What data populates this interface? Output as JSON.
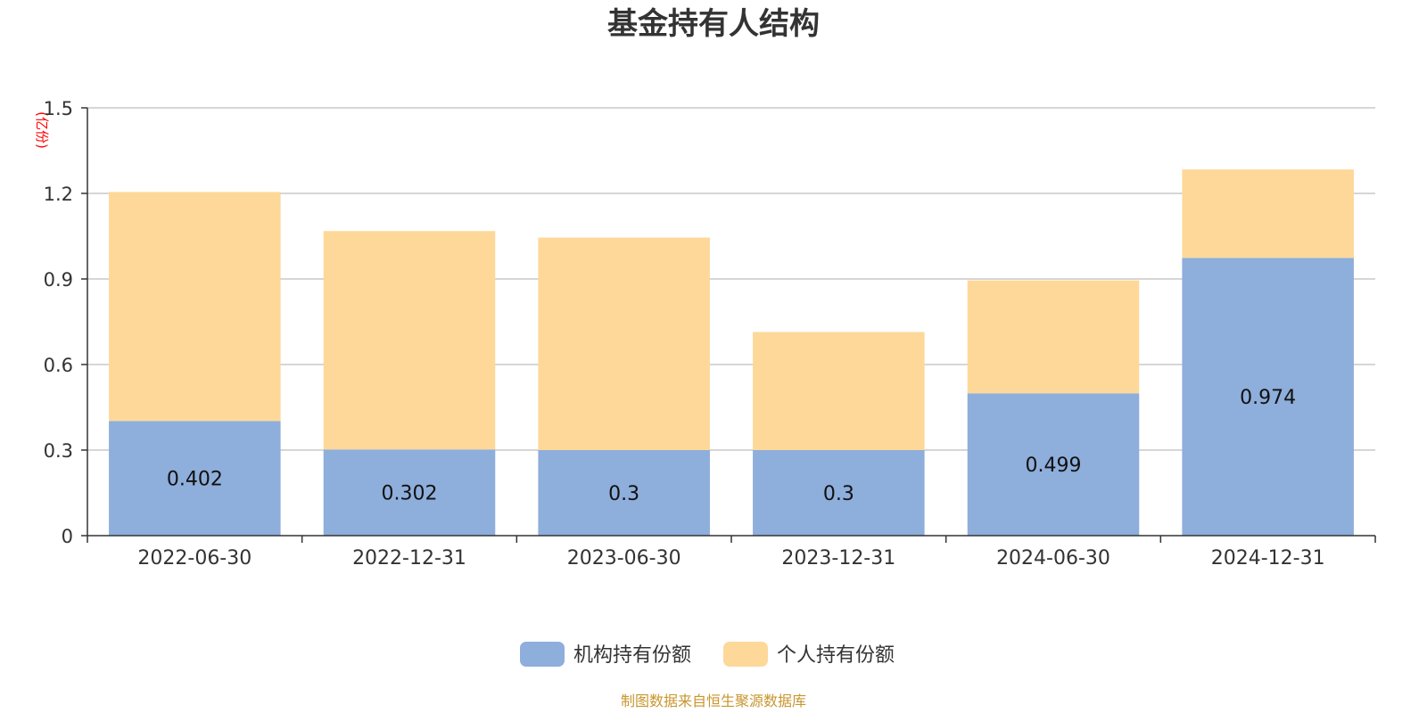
{
  "chart_data": {
    "type": "bar",
    "stacked": true,
    "title": "基金持有人结构",
    "ylabel": "(亿份)",
    "xlabel": "",
    "ylim": [
      0,
      1.5
    ],
    "yticks": [
      0,
      0.3,
      0.6,
      0.9,
      1.2,
      1.5
    ],
    "ytick_labels": [
      "0",
      "0.3",
      "0.6",
      "0.9",
      "1.2",
      "1.5"
    ],
    "grid": true,
    "legend_position": "bottom-center",
    "categories": [
      "2022-06-30",
      "2022-12-31",
      "2023-06-30",
      "2023-12-31",
      "2024-06-30",
      "2024-12-31"
    ],
    "series": [
      {
        "name": "机构持有份额",
        "color": "#8eaedb",
        "values": [
          0.402,
          0.302,
          0.3,
          0.3,
          0.499,
          0.974
        ],
        "labels": [
          "0.402",
          "0.302",
          "0.3",
          "0.3",
          "0.499",
          "0.974"
        ]
      },
      {
        "name": "个人持有份额",
        "color": "#fdd899",
        "values": [
          0.803,
          0.766,
          0.745,
          0.414,
          0.396,
          0.31
        ]
      }
    ],
    "source": "制图数据来自恒生聚源数据库"
  }
}
